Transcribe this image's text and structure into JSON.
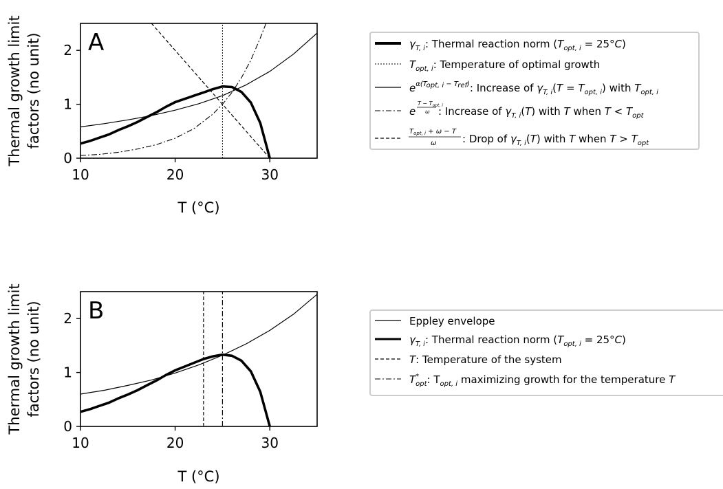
{
  "chart_data": [
    {
      "type": "line",
      "panel_label": "A",
      "xlabel": "T (°C)",
      "ylabel_lines": [
        "Thermal growth limit",
        "factors (no unit)"
      ],
      "xlim": [
        10,
        35
      ],
      "ylim": [
        0,
        2.5
      ],
      "xticks": [
        10,
        20,
        30
      ],
      "yticks": [
        0,
        1,
        2
      ],
      "grid": false,
      "legend_placement": "outside-right",
      "params": {
        "T_opt": 25,
        "omega": 5
      },
      "series": [
        {
          "name": "γ_{T,i}: Thermal reaction norm (T_{opt,i} = 25°C)",
          "style": "solid-thick",
          "x": [
            10,
            11,
            12,
            13,
            14,
            15,
            16,
            17,
            18,
            19,
            20,
            21,
            22,
            23,
            24,
            25,
            26,
            27,
            28,
            29,
            30
          ],
          "y": [
            0.27,
            0.32,
            0.38,
            0.44,
            0.52,
            0.59,
            0.67,
            0.76,
            0.85,
            0.95,
            1.04,
            1.1,
            1.16,
            1.22,
            1.28,
            1.33,
            1.32,
            1.23,
            1.03,
            0.65,
            0.0
          ]
        },
        {
          "name": "T_{opt,i}: Temperature of optimal growth",
          "style": "dotted-thin",
          "x": [
            25,
            25
          ],
          "y": [
            0,
            2.5
          ]
        },
        {
          "name": "e^{α(T_{opt,i} − T_{ref})}: Increase of γ_{T,i}(T = T_{opt,i}) with T_{opt,i}",
          "style": "solid-thin",
          "x": [
            10,
            12.5,
            15,
            17.5,
            20,
            22.5,
            25,
            27.5,
            30,
            32.5,
            35
          ],
          "y": [
            0.58,
            0.64,
            0.71,
            0.79,
            0.89,
            1.01,
            1.16,
            1.36,
            1.61,
            1.93,
            2.32
          ]
        },
        {
          "name": "e^{(T − T_{opt,i})/ω}: Increase of γ_{T,i}(T) with T when T < T_{opt}",
          "style": "dashdot",
          "x": [
            10,
            12,
            14,
            16,
            18,
            20,
            22,
            24,
            25,
            26,
            27,
            28,
            29,
            29.6
          ],
          "y": [
            0.05,
            0.07,
            0.11,
            0.17,
            0.25,
            0.37,
            0.55,
            0.82,
            1.0,
            1.22,
            1.49,
            1.82,
            2.23,
            2.5
          ]
        },
        {
          "name": "(T_{opt,i} + ω − T)/ω: Drop of γ_{T,i}(T) with T when T > T_{opt}",
          "style": "dashed",
          "x": [
            17.5,
            30
          ],
          "y": [
            2.5,
            0
          ]
        }
      ]
    },
    {
      "type": "line",
      "panel_label": "B",
      "xlabel": "T (°C)",
      "ylabel_lines": [
        "Thermal growth limit",
        "factors (no unit)"
      ],
      "xlim": [
        10,
        35
      ],
      "ylim": [
        0,
        2.5
      ],
      "xticks": [
        10,
        20,
        30
      ],
      "yticks": [
        0,
        1,
        2
      ],
      "grid": false,
      "legend_placement": "outside-right",
      "series": [
        {
          "name": "Eppley envelope",
          "style": "solid-thin",
          "x": [
            10,
            12.5,
            15,
            17.5,
            20,
            22.5,
            25,
            27.5,
            30,
            32.5,
            35
          ],
          "y": [
            0.6,
            0.67,
            0.76,
            0.86,
            0.99,
            1.14,
            1.32,
            1.53,
            1.78,
            2.08,
            2.45
          ]
        },
        {
          "name": "γ_{T,i}: Thermal reaction norm (T_{opt,i} = 25°C)",
          "style": "solid-thick",
          "x": [
            10,
            11,
            12,
            13,
            14,
            15,
            16,
            17,
            18,
            19,
            20,
            21,
            22,
            23,
            24,
            25,
            26,
            27,
            28,
            29,
            30
          ],
          "y": [
            0.27,
            0.32,
            0.38,
            0.44,
            0.52,
            0.59,
            0.67,
            0.76,
            0.85,
            0.95,
            1.04,
            1.11,
            1.18,
            1.25,
            1.3,
            1.33,
            1.31,
            1.22,
            1.02,
            0.64,
            0.0
          ]
        },
        {
          "name": "T: Temperature of the system",
          "style": "dashed",
          "x": [
            23,
            23
          ],
          "y": [
            0,
            2.5
          ]
        },
        {
          "name": "T*_{opt}: T_{opt,i} maximizing growth for the temperature T",
          "style": "dashdot",
          "x": [
            25,
            25
          ],
          "y": [
            0,
            2.5
          ]
        }
      ]
    }
  ]
}
